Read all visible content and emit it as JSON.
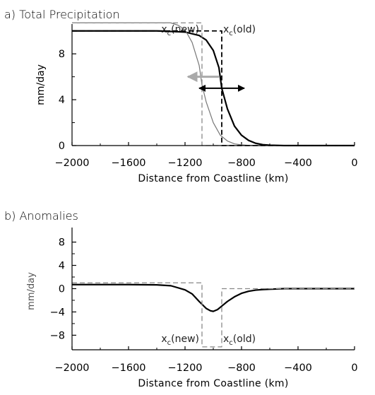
{
  "chart_data": [
    {
      "panel": "a",
      "type": "line",
      "title": "a) Total Precipitation",
      "xlabel": "Distance from Coastline (km)",
      "ylabel": "mm/day",
      "xlim": [
        -2000,
        0
      ],
      "ylim": [
        0,
        10.6
      ],
      "xticks": [
        -2000,
        -1600,
        -1200,
        -800,
        -400,
        0
      ],
      "xtick_labels": [
        "−2000",
        "−1600",
        "−1200",
        "−800",
        "−400",
        "0"
      ],
      "yticks": [
        0,
        4,
        8
      ],
      "ytick_labels": [
        "0",
        "4",
        "8"
      ],
      "annotations": [
        {
          "label": "x",
          "sub": "c",
          "suffix": "(new)",
          "x": -1080
        },
        {
          "label": "x",
          "sub": "c",
          "suffix": "(old)",
          "x": -940
        }
      ],
      "series": [
        {
          "style": "thick-solid-black",
          "x": [
            -2000,
            -1400,
            -1200,
            -1100,
            -1050,
            -1000,
            -960,
            -940,
            -900,
            -850,
            -800,
            -750,
            -700,
            -650,
            -600,
            -500,
            -400,
            0
          ],
          "y": [
            10,
            10,
            9.9,
            9.6,
            9.2,
            8.3,
            6.8,
            5.0,
            3.2,
            1.7,
            0.9,
            0.45,
            0.2,
            0.08,
            0.03,
            0,
            0,
            0
          ]
        },
        {
          "style": "thin-solid-gray",
          "x": [
            -2000,
            -1300,
            -1250,
            -1200,
            -1150,
            -1100,
            -1080,
            -1050,
            -1000,
            -950,
            -900,
            -850,
            -800,
            -750,
            -700,
            -650,
            -600,
            0
          ],
          "y": [
            10.7,
            10.7,
            10.5,
            10.1,
            9.0,
            7.0,
            5.3,
            3.8,
            2.0,
            0.9,
            0.4,
            0.15,
            0.06,
            0.02,
            0,
            0,
            0,
            0
          ]
        },
        {
          "style": "dashed-black-step",
          "x": [
            -2000,
            -940,
            -940,
            0
          ],
          "y": [
            10,
            10,
            0,
            0
          ]
        },
        {
          "style": "dashed-gray-step",
          "x": [
            -2000,
            -1080,
            -1080,
            0
          ],
          "y": [
            10.7,
            10.7,
            0,
            0
          ]
        }
      ],
      "arrows": [
        {
          "style": "black-double",
          "x": [
            -1100,
            -780
          ],
          "y": 5.0
        },
        {
          "style": "gray-left",
          "x": [
            -960,
            -1180
          ],
          "y": 6.0
        }
      ]
    },
    {
      "panel": "b",
      "type": "line",
      "title": "b) Anomalies",
      "xlabel": "Distance from Coastline (km)",
      "ylabel": "mm/day",
      "xlim": [
        -2000,
        0
      ],
      "ylim": [
        -10.5,
        10.5
      ],
      "xticks": [
        -2000,
        -1600,
        -1200,
        -800,
        -400,
        0
      ],
      "xtick_labels": [
        "−2000",
        "−1600",
        "−1200",
        "−800",
        "−400",
        "0"
      ],
      "yticks": [
        -8,
        -4,
        0,
        4,
        8
      ],
      "ytick_labels": [
        "−8",
        "−4",
        "0",
        "4",
        "8"
      ],
      "annotations": [
        {
          "label": "x",
          "sub": "c",
          "suffix": "(new)",
          "x": -1080
        },
        {
          "label": "x",
          "sub": "c",
          "suffix": "(old)",
          "x": -940
        }
      ],
      "series": [
        {
          "style": "thick-solid-black",
          "x": [
            -2000,
            -1600,
            -1400,
            -1300,
            -1200,
            -1150,
            -1100,
            -1050,
            -1020,
            -1000,
            -970,
            -940,
            -900,
            -850,
            -800,
            -750,
            -700,
            -650,
            -600,
            -500,
            0
          ],
          "y": [
            0.7,
            0.7,
            0.65,
            0.5,
            -0.2,
            -0.9,
            -2.2,
            -3.4,
            -3.8,
            -3.9,
            -3.6,
            -3.0,
            -2.2,
            -1.4,
            -0.8,
            -0.45,
            -0.25,
            -0.15,
            -0.1,
            0,
            0
          ]
        },
        {
          "style": "dashed-gray-step",
          "x": [
            -2000,
            -1080,
            -1080,
            -940,
            -940,
            0
          ],
          "y": [
            1.0,
            1.0,
            -10,
            -10,
            0,
            0
          ]
        }
      ]
    }
  ]
}
